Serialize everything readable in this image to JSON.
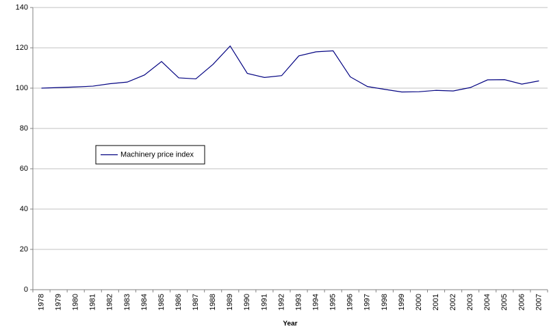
{
  "chart_data": {
    "type": "line",
    "x_label": "Year",
    "categories": [
      "1978",
      "1979",
      "1980",
      "1981",
      "1982",
      "1983",
      "1984",
      "1985",
      "1986",
      "1987",
      "1988",
      "1989",
      "1990",
      "1991",
      "1992",
      "1993",
      "1994",
      "1995",
      "1996",
      "1997",
      "1998",
      "1999",
      "2000",
      "2001",
      "2002",
      "2003",
      "2004",
      "2005",
      "2006",
      "2007"
    ],
    "series": [
      {
        "name": "Machinery price index",
        "color": "#000080",
        "values": [
          100,
          100.3,
          100.6,
          101,
          102.2,
          103,
          106.5,
          113.2,
          105.1,
          104.6,
          111.8,
          120.9,
          107.3,
          105.3,
          106.2,
          116,
          118,
          118.5,
          105.6,
          100.8,
          99.4,
          98.1,
          98.2,
          98.9,
          98.6,
          100.3,
          104.1,
          104.2,
          102,
          103.6
        ]
      }
    ],
    "ylim": [
      0,
      140
    ],
    "yticks": [
      0,
      20,
      40,
      60,
      80,
      100,
      120,
      140
    ],
    "grid": true
  }
}
